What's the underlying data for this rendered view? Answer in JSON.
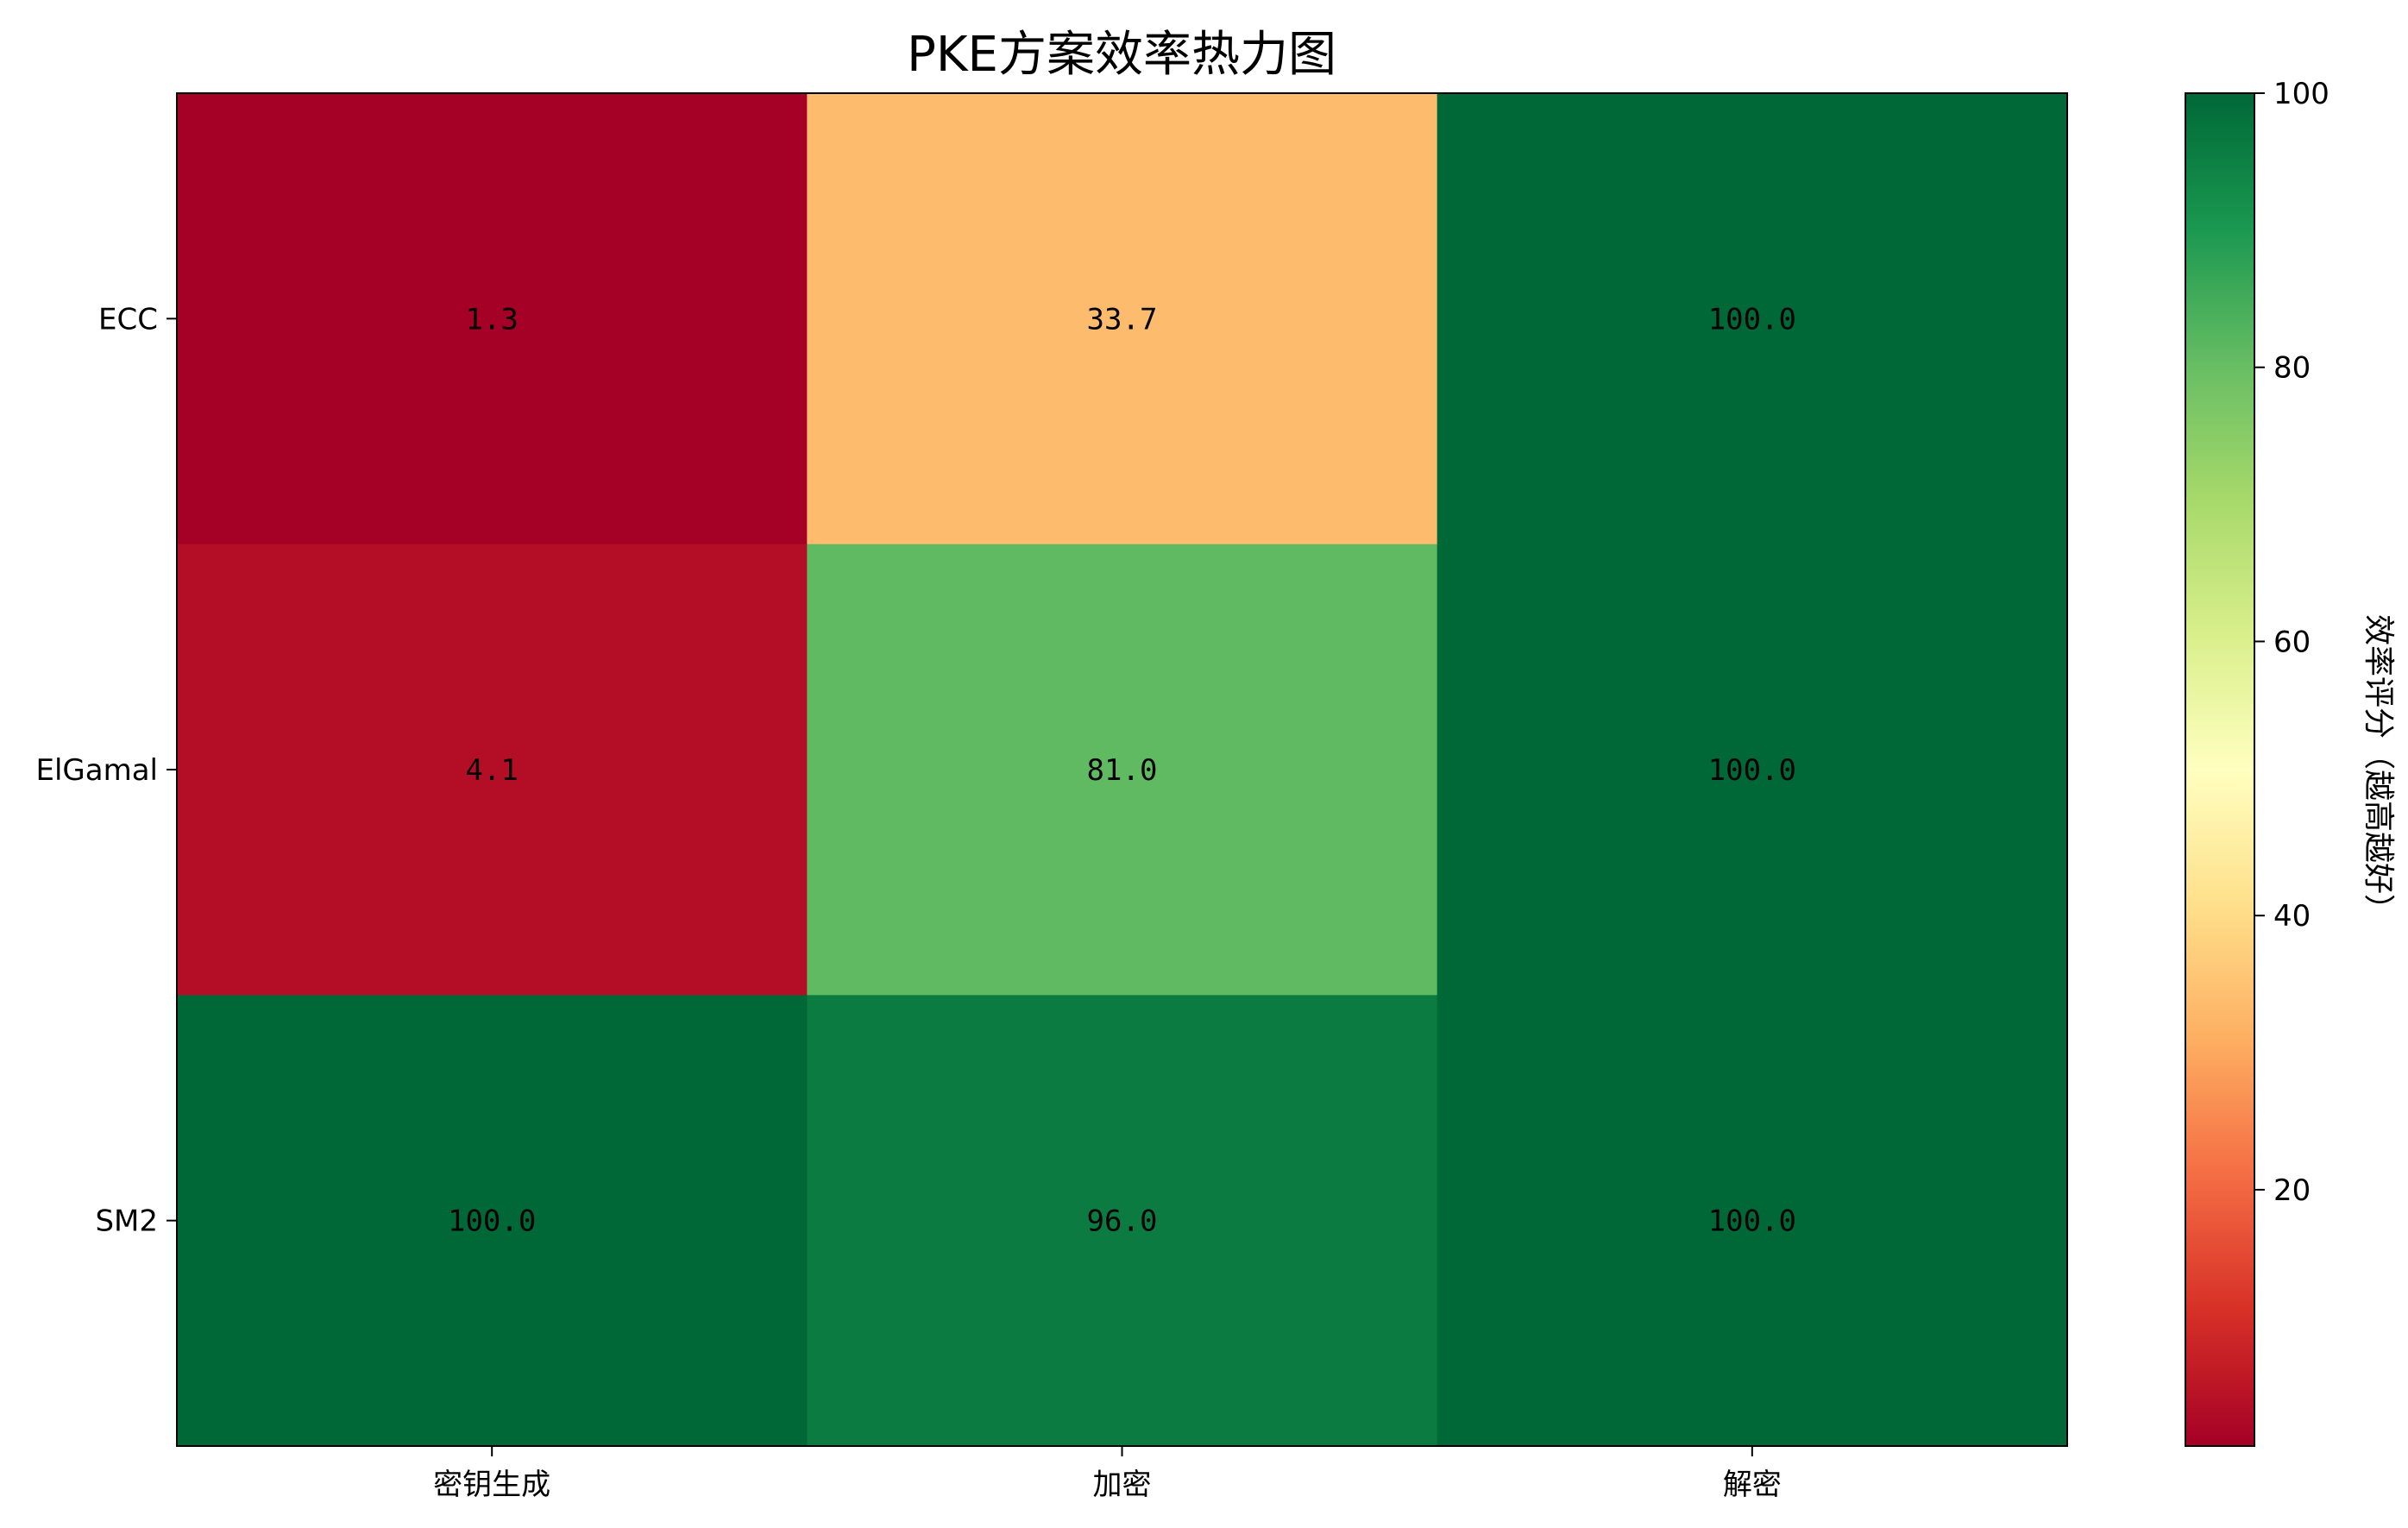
{
  "chart_data": {
    "type": "heatmap",
    "title": "PKE方案效率热力图",
    "x_categories": [
      "密钥生成",
      "加密",
      "解密"
    ],
    "y_categories": [
      "ECC",
      "ElGamal",
      "SM2"
    ],
    "values": [
      [
        1.3,
        33.7,
        100.0
      ],
      [
        4.1,
        81.0,
        100.0
      ],
      [
        100.0,
        96.0,
        100.0
      ]
    ],
    "value_labels": [
      [
        "1.3",
        "33.7",
        "100.0"
      ],
      [
        "4.1",
        "81.0",
        "100.0"
      ],
      [
        "100.0",
        "96.0",
        "100.0"
      ]
    ],
    "colormap": "RdYlGn",
    "colorbar": {
      "label": "效率评分（越高越好）",
      "range": [
        1.3,
        100
      ],
      "ticks": [
        20,
        40,
        60,
        80,
        100
      ],
      "tick_labels": [
        "20",
        "40",
        "60",
        "80",
        "100"
      ]
    },
    "grid": false
  }
}
